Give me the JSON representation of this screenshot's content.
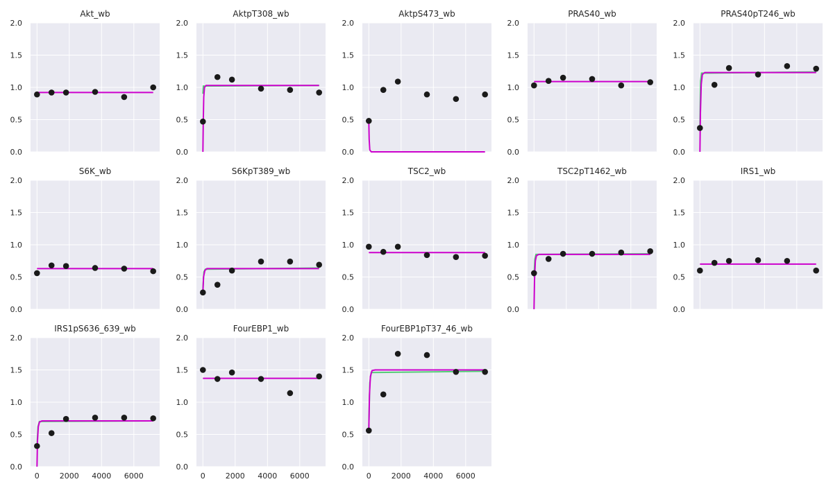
{
  "chart_data": [
    {
      "type": "line",
      "title": "Akt_wb",
      "xlim": [
        -400,
        7600
      ],
      "ylim": [
        0,
        2
      ],
      "yticks": [
        "0.0",
        "0.5",
        "1.0",
        "1.5",
        "2.0"
      ],
      "xticks": [],
      "show_xticklabels": false,
      "points": [
        [
          0,
          0.89
        ],
        [
          900,
          0.92
        ],
        [
          1800,
          0.92
        ],
        [
          3600,
          0.93
        ],
        [
          5400,
          0.85
        ],
        [
          7200,
          1.0
        ]
      ],
      "fit": [
        [
          0,
          0.92
        ],
        [
          7200,
          0.92
        ]
      ]
    },
    {
      "type": "line",
      "title": "AktpT308_wb",
      "xlim": [
        -400,
        7600
      ],
      "ylim": [
        0,
        2
      ],
      "yticks": [
        "0.0",
        "0.5",
        "1.0",
        "1.5",
        "2.0"
      ],
      "xticks": [],
      "show_xticklabels": false,
      "points": [
        [
          0,
          0.47
        ],
        [
          900,
          1.16
        ],
        [
          1800,
          1.12
        ],
        [
          3600,
          0.98
        ],
        [
          5400,
          0.96
        ],
        [
          7200,
          0.92
        ]
      ],
      "fit": [
        [
          0,
          0
        ],
        [
          20,
          0.45
        ],
        [
          50,
          0.85
        ],
        [
          100,
          1.0
        ],
        [
          200,
          1.03
        ],
        [
          7200,
          1.03
        ]
      ],
      "fit2": [
        [
          0,
          0.9
        ],
        [
          30,
          1.02
        ],
        [
          7200,
          1.03
        ]
      ]
    },
    {
      "type": "line",
      "title": "AktpS473_wb",
      "xlim": [
        -400,
        7600
      ],
      "ylim": [
        0,
        2
      ],
      "yticks": [
        "0.0",
        "0.5",
        "1.0",
        "1.5",
        "2.0"
      ],
      "xticks": [],
      "show_xticklabels": false,
      "points": [
        [
          0,
          0.48
        ],
        [
          900,
          0.96
        ],
        [
          1800,
          1.09
        ],
        [
          3600,
          0.89
        ],
        [
          5400,
          0.82
        ],
        [
          7200,
          0.89
        ]
      ],
      "fit": [
        [
          0,
          0.47
        ],
        [
          20,
          0.2
        ],
        [
          60,
          0.03
        ],
        [
          150,
          0.0
        ],
        [
          7200,
          0.0
        ]
      ]
    },
    {
      "type": "line",
      "title": "PRAS40_wb",
      "xlim": [
        -400,
        7600
      ],
      "ylim": [
        0,
        2
      ],
      "yticks": [
        "0.0",
        "0.5",
        "1.0",
        "1.5",
        "2.0"
      ],
      "xticks": [],
      "show_xticklabels": false,
      "points": [
        [
          0,
          1.03
        ],
        [
          900,
          1.1
        ],
        [
          1800,
          1.15
        ],
        [
          3600,
          1.13
        ],
        [
          5400,
          1.03
        ],
        [
          7200,
          1.08
        ]
      ],
      "fit": [
        [
          0,
          1.09
        ],
        [
          7200,
          1.09
        ]
      ]
    },
    {
      "type": "line",
      "title": "PRAS40pT246_wb",
      "xlim": [
        -400,
        7600
      ],
      "ylim": [
        0,
        2
      ],
      "yticks": [
        "0.0",
        "0.5",
        "1.0",
        "1.5",
        "2.0"
      ],
      "xticks": [],
      "show_xticklabels": false,
      "points": [
        [
          0,
          0.37
        ],
        [
          900,
          1.04
        ],
        [
          1800,
          1.3
        ],
        [
          3600,
          1.2
        ],
        [
          5400,
          1.33
        ],
        [
          7200,
          1.29
        ]
      ],
      "fit": [
        [
          0,
          0
        ],
        [
          30,
          0.6
        ],
        [
          80,
          1.05
        ],
        [
          150,
          1.2
        ],
        [
          300,
          1.23
        ],
        [
          7200,
          1.23
        ]
      ],
      "fit2": [
        [
          0,
          0.4
        ],
        [
          40,
          1.1
        ],
        [
          100,
          1.22
        ],
        [
          7200,
          1.24
        ]
      ]
    },
    {
      "type": "line",
      "title": "S6K_wb",
      "xlim": [
        -400,
        7600
      ],
      "ylim": [
        0,
        2
      ],
      "yticks": [
        "0.0",
        "0.5",
        "1.0",
        "1.5",
        "2.0"
      ],
      "xticks": [],
      "show_xticklabels": false,
      "points": [
        [
          0,
          0.56
        ],
        [
          900,
          0.68
        ],
        [
          1800,
          0.67
        ],
        [
          3600,
          0.64
        ],
        [
          5400,
          0.63
        ],
        [
          7200,
          0.59
        ]
      ],
      "fit": [
        [
          0,
          0.63
        ],
        [
          7200,
          0.63
        ]
      ]
    },
    {
      "type": "line",
      "title": "S6KpT389_wb",
      "xlim": [
        -400,
        7600
      ],
      "ylim": [
        0,
        2
      ],
      "yticks": [
        "0.0",
        "0.5",
        "1.0",
        "1.5",
        "2.0"
      ],
      "xticks": [],
      "show_xticklabels": false,
      "points": [
        [
          0,
          0.26
        ],
        [
          900,
          0.38
        ],
        [
          1800,
          0.6
        ],
        [
          3600,
          0.74
        ],
        [
          5400,
          0.74
        ],
        [
          7200,
          0.69
        ]
      ],
      "fit": [
        [
          0,
          0.26
        ],
        [
          40,
          0.5
        ],
        [
          120,
          0.6
        ],
        [
          250,
          0.63
        ],
        [
          7200,
          0.63
        ]
      ],
      "fit2": [
        [
          0,
          0.3
        ],
        [
          60,
          0.58
        ],
        [
          150,
          0.62
        ],
        [
          7200,
          0.64
        ]
      ]
    },
    {
      "type": "line",
      "title": "TSC2_wb",
      "xlim": [
        -400,
        7600
      ],
      "ylim": [
        0,
        2
      ],
      "yticks": [
        "0.0",
        "0.5",
        "1.0",
        "1.5",
        "2.0"
      ],
      "xticks": [],
      "show_xticklabels": false,
      "points": [
        [
          0,
          0.97
        ],
        [
          900,
          0.89
        ],
        [
          1800,
          0.97
        ],
        [
          3600,
          0.84
        ],
        [
          5400,
          0.81
        ],
        [
          7200,
          0.83
        ]
      ],
      "fit": [
        [
          0,
          0.88
        ],
        [
          7200,
          0.88
        ]
      ]
    },
    {
      "type": "line",
      "title": "TSC2pT1462_wb",
      "xlim": [
        -400,
        7600
      ],
      "ylim": [
        0,
        2
      ],
      "yticks": [
        "0.0",
        "0.5",
        "1.0",
        "1.5",
        "2.0"
      ],
      "xticks": [],
      "show_xticklabels": false,
      "points": [
        [
          0,
          0.56
        ],
        [
          900,
          0.78
        ],
        [
          1800,
          0.86
        ],
        [
          3600,
          0.86
        ],
        [
          5400,
          0.88
        ],
        [
          7200,
          0.9
        ]
      ],
      "fit": [
        [
          0,
          0
        ],
        [
          30,
          0.45
        ],
        [
          80,
          0.75
        ],
        [
          150,
          0.83
        ],
        [
          300,
          0.85
        ],
        [
          7200,
          0.85
        ]
      ],
      "fit2": [
        [
          0,
          0.5
        ],
        [
          50,
          0.78
        ],
        [
          120,
          0.85
        ],
        [
          7200,
          0.86
        ]
      ]
    },
    {
      "type": "line",
      "title": "IRS1_wb",
      "xlim": [
        -400,
        7600
      ],
      "ylim": [
        0,
        2
      ],
      "yticks": [
        "0.0",
        "0.5",
        "1.0",
        "1.5",
        "2.0"
      ],
      "xticks": [],
      "show_xticklabels": false,
      "points": [
        [
          0,
          0.6
        ],
        [
          900,
          0.72
        ],
        [
          1800,
          0.75
        ],
        [
          3600,
          0.76
        ],
        [
          5400,
          0.75
        ],
        [
          7200,
          0.6
        ]
      ],
      "fit": [
        [
          0,
          0.7
        ],
        [
          7200,
          0.7
        ]
      ]
    },
    {
      "type": "line",
      "title": "IRS1pS636_639_wb",
      "xlim": [
        -400,
        7600
      ],
      "ylim": [
        0,
        2
      ],
      "yticks": [
        "0.0",
        "0.5",
        "1.0",
        "1.5",
        "2.0"
      ],
      "xticks": [
        0,
        2000,
        4000,
        6000
      ],
      "show_xticklabels": true,
      "points": [
        [
          0,
          0.32
        ],
        [
          900,
          0.52
        ],
        [
          1800,
          0.74
        ],
        [
          3600,
          0.76
        ],
        [
          5400,
          0.76
        ],
        [
          7200,
          0.75
        ]
      ],
      "fit": [
        [
          0,
          0
        ],
        [
          30,
          0.4
        ],
        [
          80,
          0.62
        ],
        [
          150,
          0.69
        ],
        [
          300,
          0.71
        ],
        [
          7200,
          0.71
        ]
      ],
      "fit2": [
        [
          0,
          0.3
        ],
        [
          60,
          0.62
        ],
        [
          150,
          0.7
        ],
        [
          7200,
          0.71
        ]
      ]
    },
    {
      "type": "line",
      "title": "FourEBP1_wb",
      "xlim": [
        -400,
        7600
      ],
      "ylim": [
        0,
        2
      ],
      "yticks": [
        "0.0",
        "0.5",
        "1.0",
        "1.5",
        "2.0"
      ],
      "xticks": [
        0,
        2000,
        4000,
        6000
      ],
      "show_xticklabels": true,
      "points": [
        [
          0,
          1.5
        ],
        [
          900,
          1.36
        ],
        [
          1800,
          1.46
        ],
        [
          3600,
          1.36
        ],
        [
          5400,
          1.14
        ],
        [
          7200,
          1.4
        ]
      ],
      "fit": [
        [
          0,
          1.37
        ],
        [
          7200,
          1.37
        ]
      ]
    },
    {
      "type": "line",
      "title": "FourEBP1pT37_46_wb",
      "xlim": [
        -400,
        7600
      ],
      "ylim": [
        0,
        2
      ],
      "yticks": [
        "0.0",
        "0.5",
        "1.0",
        "1.5",
        "2.0"
      ],
      "xticks": [
        0,
        2000,
        4000,
        6000
      ],
      "show_xticklabels": true,
      "points": [
        [
          0,
          0.56
        ],
        [
          900,
          1.12
        ],
        [
          1800,
          1.75
        ],
        [
          3600,
          1.73
        ],
        [
          5400,
          1.47
        ],
        [
          7200,
          1.47
        ]
      ],
      "fit": [
        [
          0,
          0.56
        ],
        [
          40,
          1.1
        ],
        [
          100,
          1.4
        ],
        [
          200,
          1.49
        ],
        [
          400,
          1.5
        ],
        [
          7200,
          1.5
        ]
      ],
      "fit2": [
        [
          0,
          0.6
        ],
        [
          60,
          1.3
        ],
        [
          150,
          1.46
        ],
        [
          7200,
          1.48
        ]
      ]
    }
  ],
  "style": {
    "plot_bg": "#eaeaf2",
    "grid_color": "#ffffff",
    "point_color": "#1a1a1a",
    "fit_color": "#cc00cc",
    "fit2_color": "#55cc77",
    "text_color": "#262626"
  }
}
